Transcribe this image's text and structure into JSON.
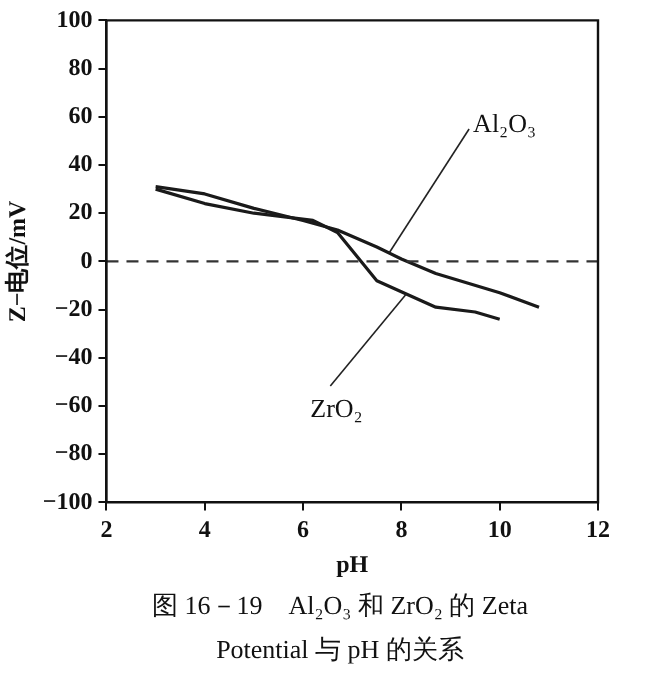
{
  "chart_data": {
    "type": "line",
    "xlabel": "pH",
    "ylabel": "Z−电位/mV",
    "xlim": [
      2,
      12
    ],
    "xticks": [
      2,
      4,
      6,
      8,
      10,
      12
    ],
    "ylim": [
      -100,
      100
    ],
    "yticks": [
      -100,
      -80,
      -60,
      -40,
      -20,
      0,
      20,
      40,
      60,
      80,
      100
    ],
    "grid": false,
    "legend": false,
    "marker": "none",
    "line_style": "solid",
    "series": [
      {
        "name": "Al₂O₃",
        "color": "#1a1a1a",
        "x": [
          3,
          4,
          5,
          6,
          6.7,
          7.5,
          8,
          8.7,
          10,
          10.8
        ],
        "values": [
          31,
          28,
          22,
          17,
          13,
          6,
          1,
          -5,
          -13,
          -19
        ]
      },
      {
        "name": "ZrO₂",
        "color": "#1a1a1a",
        "x": [
          3,
          4,
          5,
          6.2,
          6.7,
          7.5,
          8.7,
          9.5,
          10
        ],
        "values": [
          30,
          24,
          20,
          17,
          12,
          -8,
          -19,
          -21,
          -24
        ]
      }
    ],
    "ref_lines": [
      {
        "axis": "y",
        "value": 0,
        "line_style": "dashed",
        "color": "#333333"
      }
    ],
    "annotations": [
      "图 16－19　Al₂O₃ 和 ZrO₂ 的 Zeta Potential 与 pH 的关系"
    ]
  }
}
